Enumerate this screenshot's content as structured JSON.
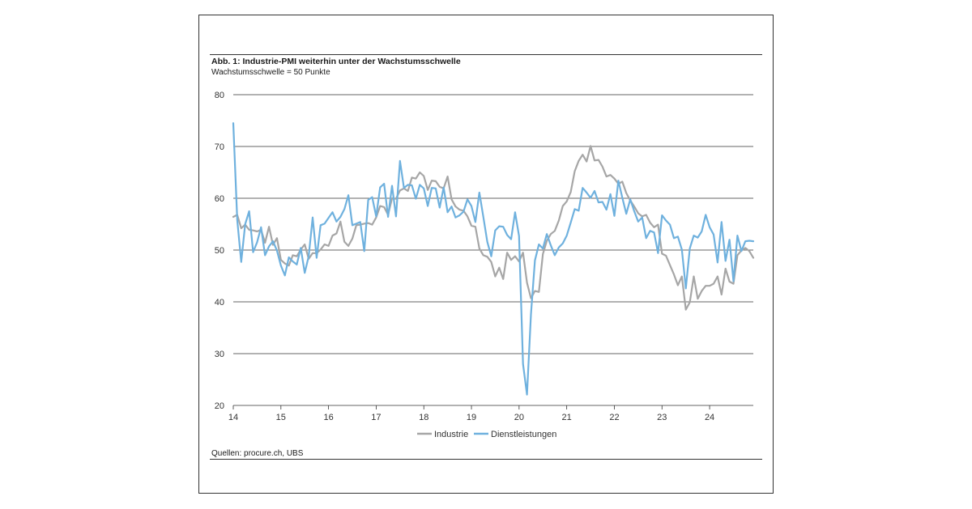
{
  "header": {
    "title": "Abb. 1: Industrie-PMI weiterhin unter der Wachstumsschwelle",
    "subtitle": "Wachstumsschwelle = 50 Punkte"
  },
  "footer": {
    "source": "Quellen: procure.ch, UBS"
  },
  "colors": {
    "industrie": "#a6a6a6",
    "dienstleistungen": "#6fb1de",
    "grid": "#333333"
  },
  "chart_data": {
    "type": "line",
    "title": "Abb. 1: Industrie-PMI weiterhin unter der Wachstumsschwelle",
    "subtitle": "Wachstumsschwelle = 50 Punkte",
    "xlabel": "",
    "ylabel": "",
    "x_start": "2014-01",
    "x_frequency": "monthly",
    "xlim": [
      14,
      24.917
    ],
    "ylim": [
      20,
      80
    ],
    "yticks": [
      20,
      30,
      40,
      50,
      60,
      70,
      80
    ],
    "xticks": [
      {
        "value": 14,
        "label": "14"
      },
      {
        "value": 15,
        "label": "15"
      },
      {
        "value": 16,
        "label": "16"
      },
      {
        "value": 17,
        "label": "17"
      },
      {
        "value": 18,
        "label": "18"
      },
      {
        "value": 19,
        "label": "19"
      },
      {
        "value": 20,
        "label": "20"
      },
      {
        "value": 21,
        "label": "21"
      },
      {
        "value": 22,
        "label": "22"
      },
      {
        "value": 23,
        "label": "23"
      },
      {
        "value": 24,
        "label": "24"
      }
    ],
    "grid": "horizontal",
    "legend": {
      "position": "bottom-center",
      "entries": [
        "Industrie",
        "Dienstleistungen"
      ]
    },
    "series": [
      {
        "name": "Industrie",
        "color": "#a6a6a6",
        "values": [
          56.4,
          56.8,
          54.2,
          54.9,
          53.9,
          53.8,
          53.6,
          53.9,
          51.4,
          54.5,
          51.0,
          52.3,
          48.1,
          47.4,
          47.0,
          49.0,
          48.8,
          50.1,
          51.1,
          48.3,
          49.4,
          49.4,
          50.1,
          51.1,
          50.8,
          52.8,
          53.2,
          55.5,
          51.6,
          50.8,
          52.2,
          54.8,
          54.9,
          55.1,
          55.2,
          54.9,
          56.3,
          58.5,
          58.3,
          56.8,
          60.0,
          59.9,
          61.5,
          61.9,
          61.4,
          64.0,
          63.8,
          65.0,
          64.3,
          61.6,
          63.4,
          63.3,
          62.2,
          61.9,
          64.2,
          59.8,
          58.4,
          57.8,
          57.6,
          56.5,
          54.7,
          54.5,
          50.3,
          49.0,
          48.7,
          47.7,
          44.9,
          46.6,
          44.4,
          49.5,
          48.1,
          48.8,
          47.8,
          49.5,
          43.7,
          40.7,
          42.1,
          41.9,
          49.2,
          51.8,
          53.1,
          53.7,
          55.7,
          58.5,
          59.4,
          61.2,
          65.2,
          67.2,
          68.4,
          67.1,
          70.1,
          67.3,
          67.4,
          66.1,
          64.2,
          64.5,
          63.8,
          62.8,
          63.2,
          61.0,
          59.6,
          58.4,
          57.1,
          56.5,
          56.8,
          55.3,
          54.4,
          54.9,
          49.3,
          48.9,
          47.1,
          45.3,
          43.2,
          44.9,
          38.5,
          39.9,
          44.9,
          40.6,
          42.1,
          43.1,
          43.1,
          43.5,
          44.9,
          41.4,
          46.4,
          43.9,
          43.5,
          49.0,
          49.9,
          50.4,
          49.8,
          48.5
        ]
      },
      {
        "name": "Dienstleistungen",
        "color": "#6fb1de",
        "values": [
          74.5,
          55.8,
          47.7,
          55.0,
          57.5,
          49.6,
          51.5,
          54.4,
          49.0,
          50.7,
          51.7,
          49.9,
          47.0,
          45.1,
          48.6,
          47.8,
          47.2,
          50.4,
          45.6,
          48.8,
          56.3,
          48.5,
          54.8,
          55.1,
          56.2,
          57.3,
          55.5,
          56.4,
          57.9,
          60.6,
          54.8,
          55.1,
          55.4,
          49.8,
          59.7,
          60.2,
          56.5,
          62.1,
          62.8,
          56.4,
          62.4,
          56.5,
          67.2,
          62.0,
          62.6,
          62.5,
          59.9,
          62.6,
          61.9,
          58.5,
          62.0,
          61.9,
          58.2,
          62.1,
          57.3,
          58.4,
          56.3,
          56.7,
          57.4,
          59.8,
          58.5,
          55.4,
          61.1,
          56.4,
          51.6,
          48.8,
          53.8,
          54.6,
          54.5,
          52.9,
          52.1,
          57.3,
          52.7,
          28.0,
          22.1,
          37.6,
          48.0,
          51.1,
          50.3,
          53.1,
          50.9,
          49.0,
          50.5,
          51.3,
          52.8,
          55.3,
          57.9,
          57.6,
          62.0,
          61.1,
          60.1,
          61.4,
          59.2,
          59.3,
          57.8,
          60.8,
          56.6,
          63.4,
          60.1,
          57.0,
          59.8,
          57.5,
          55.5,
          56.3,
          52.3,
          53.7,
          53.4,
          49.4,
          56.7,
          55.7,
          54.9,
          52.3,
          52.6,
          50.1,
          42.6,
          50.3,
          52.8,
          52.4,
          53.6,
          56.8,
          54.4,
          53.0,
          47.6,
          55.4,
          47.9,
          52.0,
          44.0,
          52.8,
          49.8,
          51.7,
          51.8,
          51.7
        ]
      }
    ]
  }
}
